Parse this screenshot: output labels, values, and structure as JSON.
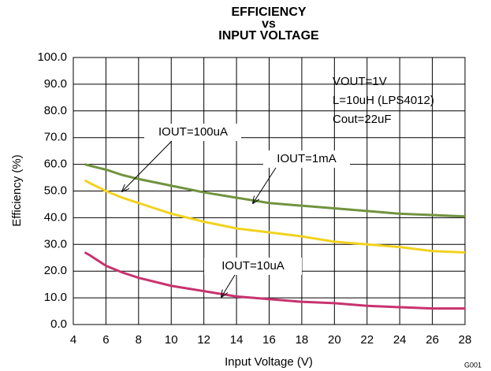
{
  "chart_data": {
    "type": "line",
    "title_lines": [
      "EFFICIENCY",
      "vs",
      "INPUT VOLTAGE"
    ],
    "xlabel": "Input Voltage (V)",
    "ylabel": "Efficiency (%)",
    "x": [
      4.7,
      5,
      6,
      7,
      8,
      10,
      12,
      14,
      16,
      18,
      20,
      22,
      24,
      26,
      28
    ],
    "series": [
      {
        "name": "IOUT=1mA",
        "color": "#71933f",
        "values": [
          60,
          59.5,
          58,
          56,
          54.5,
          52,
          49.5,
          47.5,
          45.5,
          44.5,
          43.5,
          42.5,
          41.5,
          41,
          40.5
        ]
      },
      {
        "name": "IOUT=100uA",
        "color": "#f2d21f",
        "values": [
          54,
          53,
          50,
          47.5,
          45.5,
          41.5,
          38.5,
          36,
          34.5,
          33,
          31,
          30,
          29,
          27.5,
          27
        ]
      },
      {
        "name": "IOUT=10uA",
        "color": "#c8336e",
        "values": [
          27,
          26,
          22,
          19.5,
          17.5,
          14.5,
          12.5,
          10.5,
          9.5,
          8.5,
          8,
          7,
          6.5,
          6,
          6
        ]
      }
    ],
    "xlim": [
      4,
      28
    ],
    "xticks": [
      4,
      6,
      8,
      10,
      12,
      14,
      16,
      18,
      20,
      22,
      24,
      26,
      28
    ],
    "ylim": [
      0,
      100
    ],
    "yticks": [
      {
        "value": 0,
        "label": "0.0"
      },
      {
        "value": 10,
        "label": "10.0"
      },
      {
        "value": 20,
        "label": "20.0"
      },
      {
        "value": 30,
        "label": "30.0"
      },
      {
        "value": 40,
        "label": "40.0"
      },
      {
        "value": 50,
        "label": "50.0"
      },
      {
        "value": 60,
        "label": "60.0"
      },
      {
        "value": 70,
        "label": "70.0"
      },
      {
        "value": 80,
        "label": "80.0"
      },
      {
        "value": 90,
        "label": "90.0"
      },
      {
        "value": 100,
        "label": "100.0"
      }
    ],
    "grid": true,
    "conditions": [
      "VOUT=1V",
      "L=10uH (LPS4012)",
      "Cout=22uF"
    ],
    "figure_id": "G001"
  }
}
